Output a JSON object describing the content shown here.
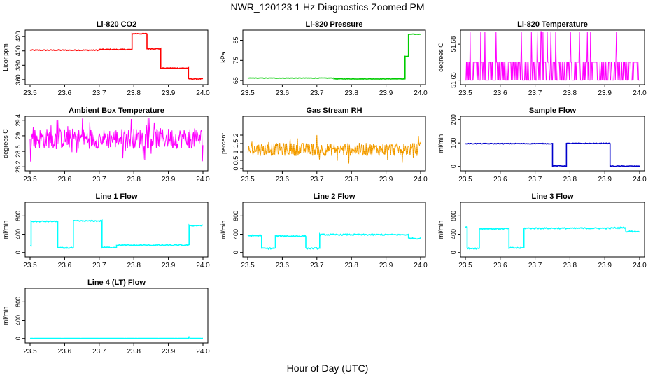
{
  "figure": {
    "title": "NWR_120123  1 Hz Diagnostics Zoomed PM",
    "xlabel": "Hour of Day (UTC)"
  },
  "chart_data": [
    {
      "type": "line",
      "title": "Li-820 CO2",
      "ylabel": "Licor ppm",
      "color": "#ff0000",
      "xlim": [
        23.5,
        24.0
      ],
      "ylim": [
        356,
        426
      ],
      "xticks": [
        "23.5",
        "23.6",
        "23.7",
        "23.8",
        "23.9",
        "24.0"
      ],
      "yticks": [
        360,
        380,
        400,
        420
      ],
      "style": "steps",
      "segments": [
        {
          "x": [
            23.5,
            23.7
          ],
          "y": 401
        },
        {
          "x": [
            23.7,
            23.795
          ],
          "y": 402
        },
        {
          "x": [
            23.795,
            23.838
          ],
          "y": 424
        },
        {
          "x": [
            23.838,
            23.878
          ],
          "y": 403
        },
        {
          "x": [
            23.878,
            23.958
          ],
          "y": 376
        },
        {
          "x": [
            23.958,
            24.0
          ],
          "y": 361
        }
      ],
      "noise": 0.6
    },
    {
      "type": "line",
      "title": "Li-820 Pressure",
      "ylabel": "kPa",
      "color": "#00cc00",
      "xlim": [
        23.5,
        24.0
      ],
      "ylim": [
        64,
        89
      ],
      "xticks": [
        "23.5",
        "23.6",
        "23.7",
        "23.8",
        "23.9",
        "24.0"
      ],
      "yticks": [
        65,
        75,
        85
      ],
      "style": "steps",
      "segments": [
        {
          "x": [
            23.5,
            23.75
          ],
          "y": 66.2
        },
        {
          "x": [
            23.75,
            23.955
          ],
          "y": 65.8
        },
        {
          "x": [
            23.955,
            23.965
          ],
          "y": 77
        },
        {
          "x": [
            23.965,
            24.0
          ],
          "y": 88
        }
      ],
      "noise": 0.1
    },
    {
      "type": "line",
      "title": "Li-820 Temperature",
      "ylabel": "degrees C",
      "color": "#ff00ff",
      "xlim": [
        23.5,
        24.0
      ],
      "ylim": [
        51.648,
        51.69
      ],
      "xticks": [
        "23.5",
        "23.6",
        "23.7",
        "23.8",
        "23.9",
        "24.0"
      ],
      "yticks": [
        51.65,
        51.68
      ],
      "style": "quantized",
      "levels": [
        51.65,
        51.665,
        51.69
      ]
    },
    {
      "type": "line",
      "title": "Ambient Box Temperature",
      "ylabel": "degrees C",
      "color": "#ff00ff",
      "xlim": [
        23.5,
        24.0
      ],
      "ylim": [
        28.15,
        29.45
      ],
      "xticks": [
        "23.5",
        "23.6",
        "23.7",
        "23.8",
        "23.9",
        "24.0"
      ],
      "yticks": [
        28.2,
        28.6,
        29.0,
        29.4
      ],
      "style": "noise",
      "mean": 28.93,
      "spread": 0.38
    },
    {
      "type": "line",
      "title": "Gas Stream RH",
      "ylabel": "percent",
      "color": "#ffa500",
      "xlim": [
        23.5,
        24.0
      ],
      "ylim": [
        0.0,
        3.0
      ],
      "xticks": [
        "23.5",
        "23.6",
        "23.7",
        "23.8",
        "23.9",
        "24.0"
      ],
      "yticks": [
        0.0,
        0.5,
        1.0,
        1.5,
        2.0
      ],
      "style": "noise",
      "mean": 1.15,
      "spread": 0.55
    },
    {
      "type": "line",
      "title": "Sample Flow",
      "ylabel": "ml/min",
      "color": "#0000cc",
      "xlim": [
        23.5,
        24.0
      ],
      "ylim": [
        -10,
        205
      ],
      "xticks": [
        "23.5",
        "23.6",
        "23.7",
        "23.8",
        "23.9",
        "24.0"
      ],
      "yticks": [
        0,
        100,
        200
      ],
      "style": "steps",
      "segments": [
        {
          "x": [
            23.5,
            23.75
          ],
          "y": 97
        },
        {
          "x": [
            23.75,
            23.79
          ],
          "y": 2
        },
        {
          "x": [
            23.79,
            23.915
          ],
          "y": 98
        },
        {
          "x": [
            23.915,
            24.0
          ],
          "y": 1
        }
      ],
      "noise": 1.5
    },
    {
      "type": "line",
      "title": "Line 1 Flow",
      "ylabel": "ml/min",
      "color": "#00ffff",
      "xlim": [
        23.5,
        24.0
      ],
      "ylim": [
        -50,
        1050
      ],
      "xticks": [
        "23.5",
        "23.6",
        "23.7",
        "23.8",
        "23.9",
        "24.0"
      ],
      "yticks": [
        0,
        400,
        800
      ],
      "style": "steps",
      "segments": [
        {
          "x": [
            23.5,
            23.503
          ],
          "y": 150
        },
        {
          "x": [
            23.503,
            23.58
          ],
          "y": 680
        },
        {
          "x": [
            23.58,
            23.625
          ],
          "y": 100
        },
        {
          "x": [
            23.625,
            23.708
          ],
          "y": 690
        },
        {
          "x": [
            23.708,
            23.75
          ],
          "y": 110
        },
        {
          "x": [
            23.75,
            23.96
          ],
          "y": 160
        },
        {
          "x": [
            23.96,
            24.0
          ],
          "y": 590
        }
      ],
      "noise": 12
    },
    {
      "type": "line",
      "title": "Line 2 Flow",
      "ylabel": "ml/min",
      "color": "#00ffff",
      "xlim": [
        23.5,
        24.0
      ],
      "ylim": [
        -50,
        1050
      ],
      "xticks": [
        "23.5",
        "23.6",
        "23.7",
        "23.8",
        "23.9",
        "24.0"
      ],
      "yticks": [
        0,
        400,
        800
      ],
      "style": "steps",
      "segments": [
        {
          "x": [
            23.5,
            23.54
          ],
          "y": 370
        },
        {
          "x": [
            23.54,
            23.58
          ],
          "y": 90
        },
        {
          "x": [
            23.58,
            23.668
          ],
          "y": 360
        },
        {
          "x": [
            23.668,
            23.708
          ],
          "y": 90
        },
        {
          "x": [
            23.708,
            23.965
          ],
          "y": 390
        },
        {
          "x": [
            23.965,
            24.0
          ],
          "y": 310
        }
      ],
      "noise": 15
    },
    {
      "type": "line",
      "title": "Line 3 Flow",
      "ylabel": "ml/min",
      "color": "#00ffff",
      "xlim": [
        23.5,
        24.0
      ],
      "ylim": [
        -50,
        1050
      ],
      "xticks": [
        "23.5",
        "23.6",
        "23.7",
        "23.8",
        "23.9",
        "24.0"
      ],
      "yticks": [
        0,
        400,
        800
      ],
      "style": "steps",
      "segments": [
        {
          "x": [
            23.5,
            23.505
          ],
          "y": 560
        },
        {
          "x": [
            23.505,
            23.54
          ],
          "y": 90
        },
        {
          "x": [
            23.54,
            23.625
          ],
          "y": 520
        },
        {
          "x": [
            23.625,
            23.668
          ],
          "y": 100
        },
        {
          "x": [
            23.668,
            23.92
          ],
          "y": 530
        },
        {
          "x": [
            23.92,
            23.96
          ],
          "y": 540
        },
        {
          "x": [
            23.96,
            24.0
          ],
          "y": 460
        }
      ],
      "noise": 14
    },
    {
      "type": "line",
      "title": "Line 4 (LT) Flow",
      "ylabel": "ml/min",
      "color": "#00ffff",
      "xlim": [
        23.5,
        24.0
      ],
      "ylim": [
        -50,
        1050
      ],
      "xticks": [
        "23.5",
        "23.6",
        "23.7",
        "23.8",
        "23.9",
        "24.0"
      ],
      "yticks": [
        0,
        400,
        800
      ],
      "style": "steps",
      "segments": [
        {
          "x": [
            23.5,
            23.958
          ],
          "y": 2
        },
        {
          "x": [
            23.958,
            23.962
          ],
          "y": 35
        },
        {
          "x": [
            23.962,
            24.0
          ],
          "y": 2
        }
      ],
      "noise": 1
    }
  ]
}
